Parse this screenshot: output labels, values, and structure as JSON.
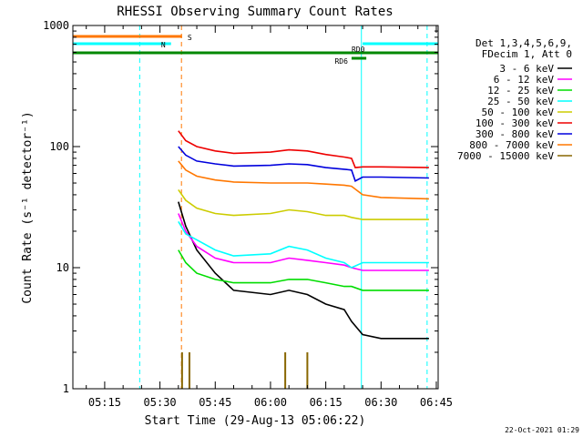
{
  "chart_data": {
    "type": "line",
    "title": "RHESSI Observing Summary Count Rates",
    "xlabel": "Start Time (29-Aug-13 05:06:22)",
    "ylabel": "Count Rate (s⁻¹ detector⁻¹)",
    "yscale": "log",
    "ylim": [
      1,
      1000
    ],
    "xlim": [
      "05:06:22",
      "06:45:30"
    ],
    "x_ticks": [
      "05:15",
      "05:30",
      "05:45",
      "06:00",
      "06:15",
      "06:30",
      "06:45"
    ],
    "y_ticks": [
      "1",
      "10",
      "100",
      "1000"
    ],
    "grid": false,
    "legend": {
      "placement": "right",
      "header": [
        "Det 1,3,4,5,6,9,",
        "FDecim 1, Att 0"
      ]
    },
    "series": [
      {
        "name": "3 - 6 keV",
        "color": "#000000",
        "x": [
          "05:35:00",
          "05:37:00",
          "05:40:00",
          "05:45:00",
          "05:50:00",
          "06:00:00",
          "06:05:00",
          "06:10:00",
          "06:15:00",
          "06:20:00",
          "06:22:00",
          "06:25:00",
          "06:30:00",
          "06:43:00"
        ],
        "values": [
          35,
          22,
          14,
          9,
          6.5,
          6,
          6.5,
          6,
          5,
          4.5,
          3.6,
          2.8,
          2.6,
          2.6
        ]
      },
      {
        "name": "6 - 12 keV",
        "color": "#ff00ff",
        "x": [
          "05:35:00",
          "05:37:00",
          "05:40:00",
          "05:45:00",
          "05:50:00",
          "06:00:00",
          "06:05:00",
          "06:10:00",
          "06:15:00",
          "06:20:00",
          "06:22:00",
          "06:25:00",
          "06:30:00",
          "06:43:00"
        ],
        "values": [
          28,
          20,
          15,
          12,
          11,
          11,
          12,
          11.5,
          11,
          10.5,
          10,
          9.5,
          9.5,
          9.5
        ]
      },
      {
        "name": "12 - 25 keV",
        "color": "#00dd00",
        "x": [
          "05:35:00",
          "05:37:00",
          "05:40:00",
          "05:45:00",
          "05:50:00",
          "06:00:00",
          "06:05:00",
          "06:10:00",
          "06:15:00",
          "06:20:00",
          "06:22:00",
          "06:25:00",
          "06:30:00",
          "06:43:00"
        ],
        "values": [
          14,
          11,
          9,
          8,
          7.5,
          7.5,
          8,
          8,
          7.5,
          7,
          7,
          6.5,
          6.5,
          6.5
        ]
      },
      {
        "name": "25 - 50 keV",
        "color": "#00ffff",
        "x": [
          "05:35:00",
          "05:37:00",
          "05:40:00",
          "05:45:00",
          "05:50:00",
          "06:00:00",
          "06:05:00",
          "06:10:00",
          "06:15:00",
          "06:20:00",
          "06:22:00",
          "06:25:00",
          "06:30:00",
          "06:43:00"
        ],
        "values": [
          24,
          19,
          17,
          14,
          12.5,
          13,
          15,
          14,
          12,
          11,
          10,
          11,
          11,
          11
        ]
      },
      {
        "name": "50 - 100 keV",
        "color": "#cccc00",
        "x": [
          "05:35:00",
          "05:37:00",
          "05:40:00",
          "05:45:00",
          "05:50:00",
          "06:00:00",
          "06:05:00",
          "06:10:00",
          "06:15:00",
          "06:20:00",
          "06:22:00",
          "06:25:00",
          "06:30:00",
          "06:43:00"
        ],
        "values": [
          44,
          36,
          31,
          28,
          27,
          28,
          30,
          29,
          27,
          27,
          26,
          25,
          25,
          25
        ]
      },
      {
        "name": "100 - 300 keV",
        "color": "#ee0000",
        "x": [
          "05:35:00",
          "05:37:00",
          "05:40:00",
          "05:45:00",
          "05:50:00",
          "06:00:00",
          "06:05:00",
          "06:10:00",
          "06:15:00",
          "06:20:00",
          "06:22:00",
          "06:23:00",
          "06:25:00",
          "06:30:00",
          "06:43:00"
        ],
        "values": [
          135,
          112,
          100,
          92,
          88,
          90,
          94,
          92,
          86,
          82,
          80,
          67,
          68,
          68,
          67
        ]
      },
      {
        "name": "300 - 800 keV",
        "color": "#0000dd",
        "x": [
          "05:35:00",
          "05:37:00",
          "05:40:00",
          "05:45:00",
          "05:50:00",
          "06:00:00",
          "06:05:00",
          "06:10:00",
          "06:15:00",
          "06:20:00",
          "06:22:00",
          "06:23:00",
          "06:25:00",
          "06:30:00",
          "06:43:00"
        ],
        "values": [
          100,
          85,
          76,
          72,
          69,
          70,
          72,
          71,
          67,
          65,
          64,
          52,
          56,
          56,
          55
        ]
      },
      {
        "name": "800 - 7000 keV",
        "color": "#ff7700",
        "x": [
          "05:35:00",
          "05:37:00",
          "05:40:00",
          "05:45:00",
          "05:50:00",
          "06:00:00",
          "06:05:00",
          "06:10:00",
          "06:15:00",
          "06:20:00",
          "06:22:00",
          "06:25:00",
          "06:30:00",
          "06:43:00"
        ],
        "values": [
          76,
          64,
          57,
          53,
          51,
          50,
          50,
          50,
          49,
          48,
          47,
          40,
          38,
          37
        ]
      },
      {
        "name": "7000 - 15000 keV",
        "color": "#886600",
        "x": [
          "05:36:00",
          "05:38:00",
          "06:04:00",
          "06:10:00"
        ],
        "values": [
          2,
          2,
          2,
          2
        ]
      }
    ],
    "annotations": {
      "flags": [
        {
          "label": "S",
          "color": "#ff7700",
          "start": "05:06:22",
          "end": "05:36:00"
        },
        {
          "label": "N",
          "color": "#00ffff",
          "start": "05:06:22",
          "end": "05:33:00"
        },
        {
          "label": "RD0",
          "color": "#008800",
          "start": "05:06:22",
          "end": "06:45:30"
        },
        {
          "label": "RD6",
          "color": "#008800",
          "start": "06:22:00",
          "end": "06:26:00"
        }
      ],
      "vertical_lines": [
        {
          "time": "05:06:22",
          "color": "#00ffff",
          "style": "solid"
        },
        {
          "time": "05:24:30",
          "color": "#00ffff",
          "style": "dashed"
        },
        {
          "time": "05:35:50",
          "color": "#ff7700",
          "style": "dashed"
        },
        {
          "time": "06:24:40",
          "color": "#00ffff",
          "style": "solid"
        },
        {
          "time": "06:42:30",
          "color": "#00ffff",
          "style": "dashed"
        }
      ]
    },
    "footer_date": "22-Oct-2021 01:29"
  }
}
